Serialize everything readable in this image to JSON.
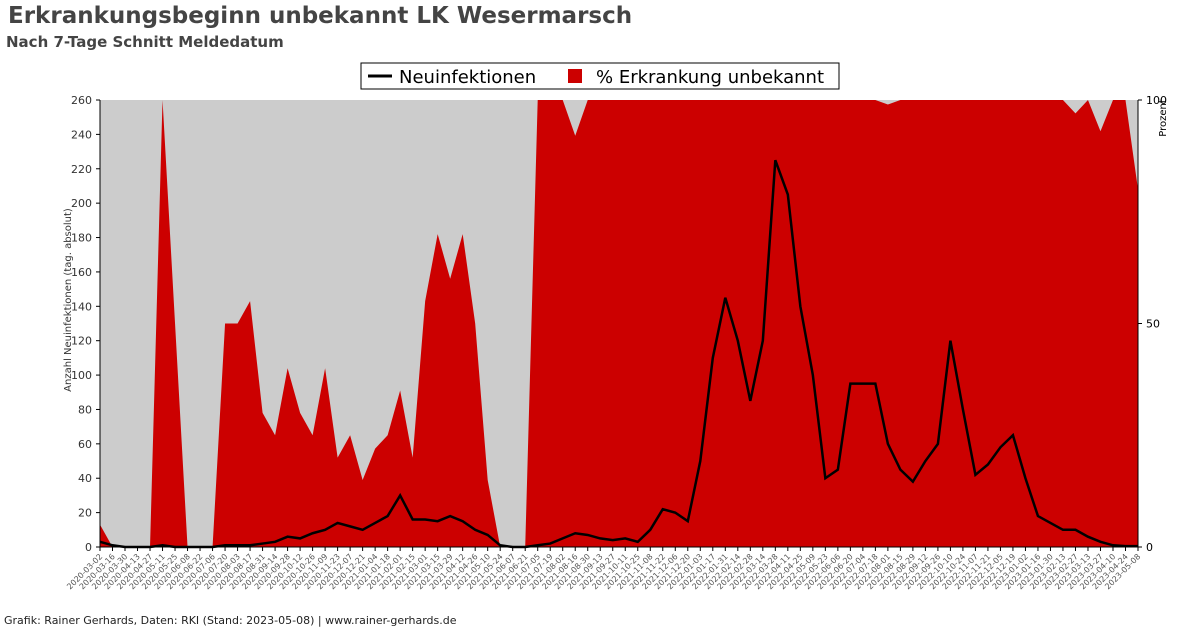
{
  "chart_data": {
    "type": "line",
    "title": "Erkrankungsbeginn unbekannt LK Wesermarsch",
    "subtitle": "Nach 7-Tage Schnitt Meldedatum",
    "y_label": "Anzahl Neuinfektionen (tag. absolut)",
    "y2_label": "Prozent",
    "footer": "Grafik: Rainer Gerhards, Daten: RKI (Stand: 2023-05-08) | www.rainer-gerhards.de",
    "x": [
      "2020-03-02",
      "2020-03-16",
      "2020-03-30",
      "2020-04-13",
      "2020-04-27",
      "2020-05-11",
      "2020-05-25",
      "2020-06-08",
      "2020-06-22",
      "2020-07-06",
      "2020-07-20",
      "2020-08-03",
      "2020-08-17",
      "2020-08-31",
      "2020-09-14",
      "2020-09-28",
      "2020-10-12",
      "2020-10-26",
      "2020-11-09",
      "2020-11-23",
      "2020-12-07",
      "2020-12-21",
      "2021-01-04",
      "2021-01-18",
      "2021-02-01",
      "2021-02-15",
      "2021-03-01",
      "2021-03-15",
      "2021-03-29",
      "2021-04-12",
      "2021-04-26",
      "2021-05-10",
      "2021-05-24",
      "2021-06-07",
      "2021-06-21",
      "2021-07-05",
      "2021-07-19",
      "2021-08-02",
      "2021-08-16",
      "2021-08-30",
      "2021-09-13",
      "2021-09-27",
      "2021-10-11",
      "2021-10-25",
      "2021-11-08",
      "2021-11-22",
      "2021-12-06",
      "2021-12-20",
      "2022-01-03",
      "2022-01-17",
      "2022-01-31",
      "2022-02-14",
      "2022-02-28",
      "2022-03-14",
      "2022-03-28",
      "2022-04-11",
      "2022-04-25",
      "2022-05-09",
      "2022-05-23",
      "2022-06-06",
      "2022-06-20",
      "2022-07-04",
      "2022-07-18",
      "2022-08-01",
      "2022-08-15",
      "2022-08-29",
      "2022-09-12",
      "2022-09-26",
      "2022-10-10",
      "2022-10-24",
      "2022-11-07",
      "2022-11-21",
      "2022-12-05",
      "2022-12-19",
      "2023-01-02",
      "2023-01-16",
      "2023-01-30",
      "2023-02-13",
      "2023-02-27",
      "2023-03-13",
      "2023-03-27",
      "2023-04-10",
      "2023-04-24",
      "2023-05-08"
    ],
    "series": [
      {
        "name": "% Erkrankung unbekannt",
        "type": "area",
        "axis": "y2",
        "color": "#cc0000",
        "values": [
          5,
          0,
          0,
          0,
          0,
          100,
          50,
          0,
          0,
          0,
          50,
          50,
          55,
          30,
          25,
          40,
          30,
          25,
          40,
          20,
          25,
          15,
          22,
          25,
          35,
          20,
          55,
          70,
          60,
          70,
          50,
          15,
          0,
          0,
          0,
          100,
          100,
          100,
          92,
          100,
          100,
          100,
          100,
          100,
          100,
          100,
          100,
          100,
          100,
          100,
          100,
          100,
          100,
          100,
          100,
          100,
          100,
          100,
          100,
          100,
          100,
          100,
          100,
          99,
          100,
          100,
          100,
          100,
          100,
          100,
          100,
          100,
          100,
          100,
          100,
          100,
          100,
          100,
          97,
          100,
          93,
          100,
          100,
          80
        ]
      },
      {
        "name": "Neuinfektionen",
        "type": "line",
        "axis": "y",
        "color": "#000000",
        "values": [
          3,
          1,
          0,
          0,
          0,
          1,
          0,
          0,
          0,
          0,
          1,
          1,
          1,
          2,
          3,
          6,
          5,
          8,
          10,
          14,
          12,
          10,
          14,
          18,
          30,
          16,
          16,
          15,
          18,
          15,
          10,
          7,
          1,
          0,
          0,
          1,
          2,
          5,
          8,
          7,
          5,
          4,
          5,
          3,
          10,
          22,
          20,
          15,
          50,
          110,
          145,
          120,
          85,
          120,
          225,
          205,
          140,
          100,
          40,
          45,
          95,
          95,
          95,
          60,
          45,
          38,
          50,
          60,
          120,
          80,
          42,
          48,
          58,
          65,
          40,
          18,
          14,
          10,
          10,
          6,
          3,
          1,
          0.5,
          0.5
        ]
      }
    ],
    "ylim": [
      0,
      260
    ],
    "yticks": [
      0,
      20,
      40,
      60,
      80,
      100,
      120,
      140,
      160,
      180,
      200,
      220,
      240,
      260
    ],
    "y2lim": [
      0,
      100
    ],
    "y2ticks": [
      0,
      50,
      100
    ],
    "plot_background": "#cccccc"
  }
}
